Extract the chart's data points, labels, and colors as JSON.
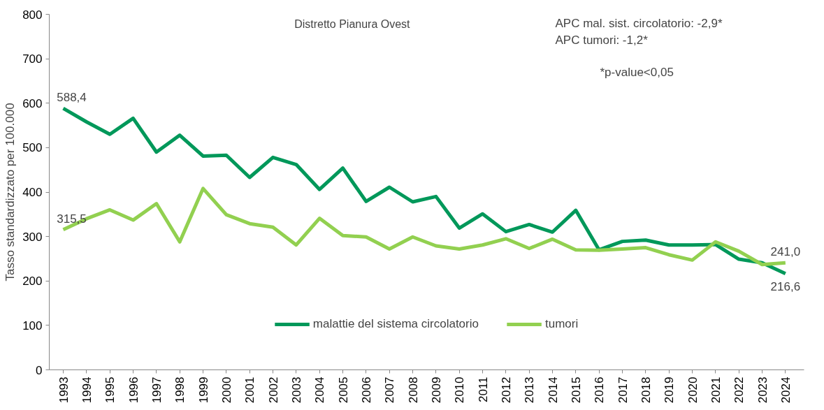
{
  "chart_data": {
    "type": "line",
    "title": "Distretto Pianura Ovest",
    "ylabel": "Tasso standardizzato per 100.000",
    "categories": [
      "1993",
      "1994",
      "1995",
      "1996",
      "1997",
      "1998",
      "1999",
      "2000",
      "2001",
      "2002",
      "2003",
      "2004",
      "2005",
      "2006",
      "2007",
      "2008",
      "2009",
      "2010",
      "2011",
      "2012",
      "2013",
      "2014",
      "2015",
      "2016",
      "2017",
      "2018",
      "2019",
      "2020",
      "2021",
      "2022",
      "2023",
      "2024"
    ],
    "series": [
      {
        "name": "malattie del sistema circolatorio",
        "color": "#00985a",
        "values": [
          588.4,
          558,
          530,
          566,
          490,
          528,
          481,
          483,
          433,
          478,
          462,
          406,
          454,
          379,
          411,
          378,
          390,
          319,
          351,
          311,
          327,
          310,
          359,
          270,
          289,
          292,
          281,
          281,
          282,
          249,
          241,
          216.6
        ],
        "value_labels": [
          "588,4",
          null,
          null,
          null,
          null,
          null,
          null,
          null,
          null,
          null,
          null,
          null,
          null,
          null,
          null,
          null,
          null,
          null,
          null,
          null,
          null,
          null,
          null,
          null,
          null,
          null,
          null,
          null,
          null,
          null,
          null,
          "216,6"
        ]
      },
      {
        "name": "tumori",
        "color": "#92d050",
        "values": [
          315.5,
          340,
          360,
          337,
          374,
          288,
          408,
          349,
          329,
          321,
          281,
          341,
          302,
          299,
          272,
          299,
          279,
          272,
          281,
          295,
          273,
          294,
          270,
          269,
          272,
          275,
          259,
          247,
          288,
          267,
          237,
          241.0
        ],
        "value_labels": [
          "315,5",
          null,
          null,
          null,
          null,
          null,
          null,
          null,
          null,
          null,
          null,
          null,
          null,
          null,
          null,
          null,
          null,
          null,
          null,
          null,
          null,
          null,
          null,
          null,
          null,
          null,
          null,
          null,
          null,
          null,
          null,
          "241,0"
        ]
      }
    ],
    "ylim": [
      0,
      800
    ],
    "yticks": [
      0,
      100,
      200,
      300,
      400,
      500,
      600,
      700,
      800
    ],
    "grid": false,
    "legend": "bottom",
    "marker": "none",
    "line_style": "solid",
    "annotations": [
      "APC mal. sist. circolatorio: -2,9*",
      "APC tumori:                              -1,2*",
      "*p-value<0,05"
    ]
  }
}
